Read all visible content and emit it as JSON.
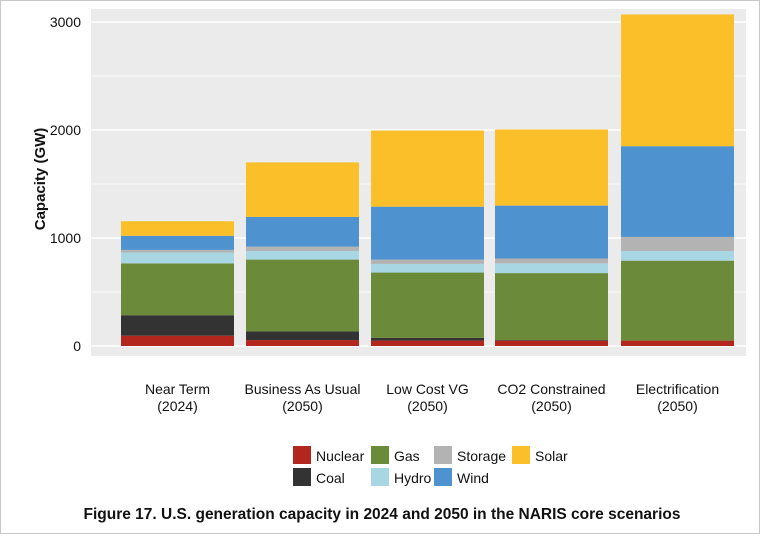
{
  "chart_data": {
    "type": "bar",
    "stacked": true,
    "ylabel": "Capacity (GW)",
    "yticks": [
      0,
      1000,
      2000,
      3000
    ],
    "ylim": [
      0,
      3100
    ],
    "grid": true,
    "legend_position": "bottom",
    "categories": [
      [
        "Near Term",
        "(2024)"
      ],
      [
        "Business As Usual",
        "(2050)"
      ],
      [
        "Low Cost VG",
        "(2050)"
      ],
      [
        "CO2 Constrained",
        "(2050)"
      ],
      [
        "Electrification",
        "(2050)"
      ]
    ],
    "series": [
      {
        "name": "Nuclear",
        "color": "#b3261e",
        "values": [
          95,
          55,
          50,
          50,
          50
        ]
      },
      {
        "name": "Coal",
        "color": "#333333",
        "values": [
          190,
          80,
          25,
          5,
          0
        ]
      },
      {
        "name": "Gas",
        "color": "#6b8a3a",
        "values": [
          480,
          665,
          605,
          620,
          740
        ]
      },
      {
        "name": "Hydro",
        "color": "#a9d6e3",
        "values": [
          100,
          80,
          80,
          90,
          90
        ]
      },
      {
        "name": "Storage",
        "color": "#b3b3b3",
        "values": [
          25,
          40,
          40,
          45,
          130
        ]
      },
      {
        "name": "Wind",
        "color": "#4e92d0",
        "values": [
          130,
          275,
          490,
          490,
          840
        ]
      },
      {
        "name": "Solar",
        "color": "#fbbf2a",
        "values": [
          135,
          505,
          705,
          705,
          1220
        ]
      }
    ],
    "legend_order": [
      [
        "Nuclear",
        "Gas",
        "Storage",
        "Solar"
      ],
      [
        "Coal",
        "Hydro",
        "Wind"
      ]
    ]
  },
  "caption": "Figure 17. U.S. generation capacity in 2024 and 2050 in the NARIS core scenarios"
}
